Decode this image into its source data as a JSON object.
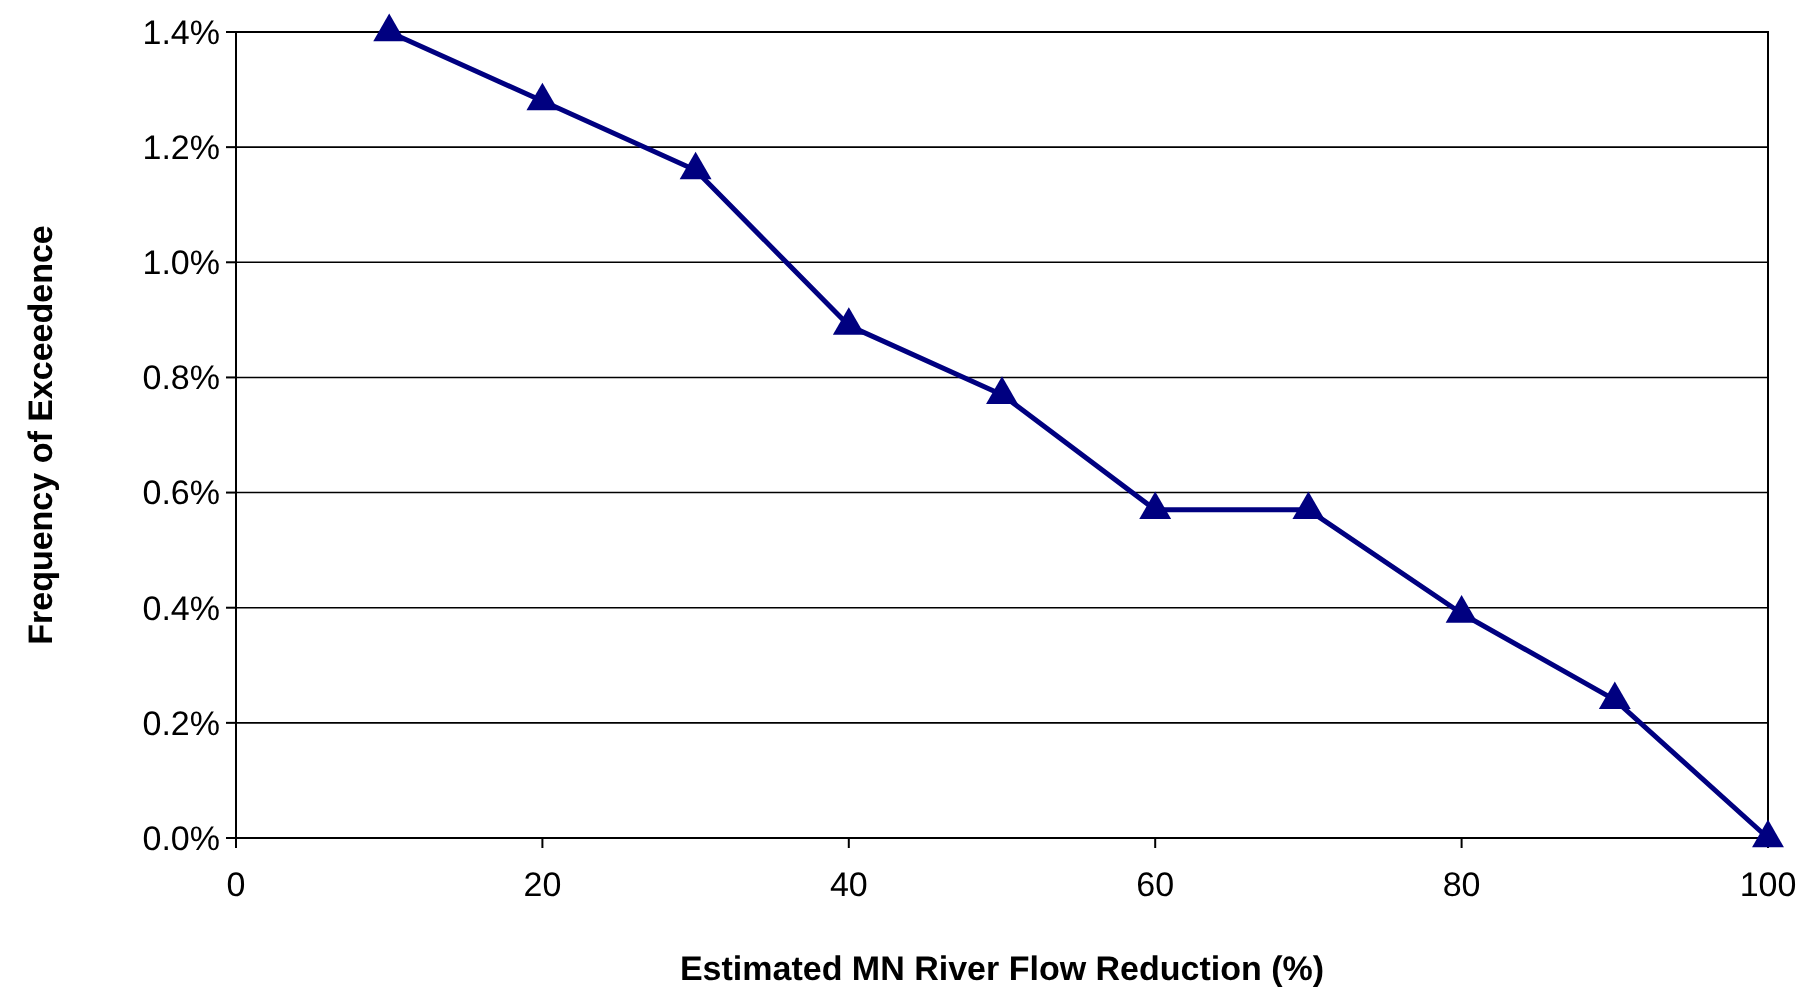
{
  "chart_data": {
    "type": "line",
    "xlabel": "Estimated MN River Flow Reduction (%)",
    "ylabel": "Frequency of Exceedence",
    "x": [
      10,
      20,
      30,
      40,
      50,
      60,
      70,
      80,
      90,
      100
    ],
    "series": [
      {
        "color": "#000080",
        "values": [
          1.4,
          1.28,
          1.16,
          0.89,
          0.77,
          0.57,
          0.57,
          0.39,
          0.24,
          0.0
        ]
      }
    ],
    "xlim": [
      0,
      100
    ],
    "xticks": [
      0,
      20,
      40,
      60,
      80,
      100
    ],
    "ylim": [
      0,
      1.4
    ],
    "yticks": [
      {
        "value": 0,
        "label": "0.0%"
      },
      {
        "value": 0.2,
        "label": "0.2%"
      },
      {
        "value": 0.4,
        "label": "0.4%"
      },
      {
        "value": 0.6,
        "label": "0.6%"
      },
      {
        "value": 0.8,
        "label": "0.8%"
      },
      {
        "value": 1.0,
        "label": "1.0%"
      },
      {
        "value": 1.2,
        "label": "1.2%"
      },
      {
        "value": 1.4,
        "label": "1.4%"
      }
    ],
    "grid": "y",
    "marker": "triangle",
    "line_style": "solid"
  }
}
